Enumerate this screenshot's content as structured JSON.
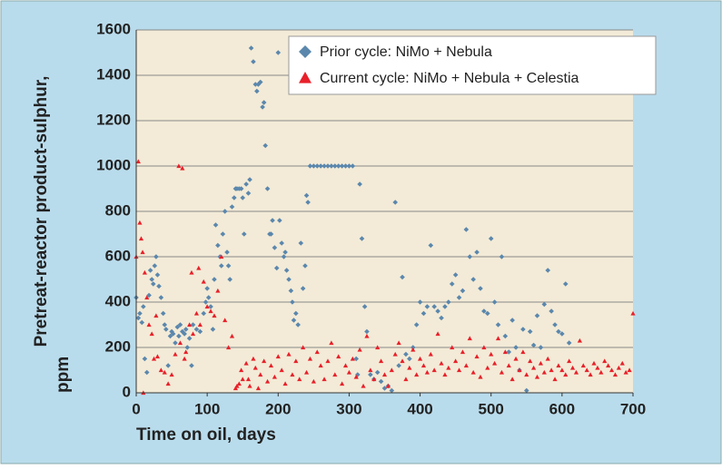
{
  "chart_data": {
    "type": "scatter",
    "x_label": "Time on oil, days",
    "y_label": [
      "Pretreat-reactor product-sulphur,",
      "ppm"
    ],
    "xlim": [
      0,
      700
    ],
    "xticks": [
      0,
      100,
      200,
      300,
      400,
      500,
      600,
      700
    ],
    "ylim": [
      0,
      1600
    ],
    "yticks": [
      0,
      200,
      400,
      600,
      800,
      1000,
      1200,
      1400,
      1600
    ],
    "grid": true,
    "legend": "top-right",
    "series": [
      {
        "name": "Prior cycle: NiMo + Nebula",
        "color": "#5b87ad",
        "marker": "diamond",
        "x": [
          0,
          3,
          5,
          8,
          10,
          12,
          15,
          18,
          20,
          22,
          24,
          26,
          28,
          30,
          32,
          35,
          38,
          40,
          42,
          45,
          48,
          50,
          52,
          55,
          58,
          60,
          62,
          65,
          68,
          70,
          72,
          75,
          78,
          80,
          85,
          90,
          95,
          98,
          100,
          102,
          105,
          108,
          110,
          112,
          115,
          118,
          120,
          122,
          125,
          128,
          130,
          132,
          135,
          138,
          140,
          142,
          145,
          148,
          150,
          152,
          155,
          158,
          160,
          162,
          165,
          168,
          170,
          172,
          175,
          178,
          180,
          182,
          185,
          188,
          190,
          192,
          195,
          198,
          200,
          202,
          205,
          208,
          210,
          212,
          215,
          218,
          220,
          222,
          225,
          228,
          232,
          235,
          238,
          240,
          242,
          245,
          250,
          255,
          260,
          265,
          270,
          275,
          280,
          285,
          290,
          295,
          300,
          305,
          310,
          312,
          315,
          318,
          322,
          325,
          330,
          335,
          340,
          345,
          350,
          355,
          360,
          365,
          370,
          375,
          380,
          385,
          390,
          395,
          400,
          405,
          410,
          415,
          420,
          425,
          430,
          435,
          440,
          445,
          450,
          455,
          460,
          465,
          470,
          475,
          480,
          485,
          490,
          495,
          500,
          505,
          510,
          515,
          520,
          525,
          530,
          535,
          540,
          545,
          550,
          555,
          560,
          565,
          570,
          575,
          580,
          585,
          590,
          595,
          600,
          605,
          610
        ],
        "values": [
          420,
          330,
          350,
          310,
          380,
          150,
          90,
          430,
          540,
          500,
          480,
          560,
          600,
          520,
          470,
          420,
          350,
          300,
          280,
          120,
          250,
          270,
          260,
          220,
          290,
          250,
          300,
          270,
          260,
          280,
          200,
          240,
          120,
          300,
          280,
          270,
          350,
          400,
          460,
          420,
          380,
          280,
          500,
          740,
          650,
          600,
          560,
          700,
          800,
          620,
          560,
          500,
          820,
          860,
          900,
          900,
          900,
          900,
          860,
          700,
          920,
          880,
          940,
          1520,
          1460,
          1360,
          1330,
          1360,
          1370,
          1260,
          1280,
          1090,
          900,
          700,
          700,
          760,
          640,
          550,
          1500,
          760,
          660,
          600,
          620,
          540,
          500,
          450,
          400,
          320,
          350,
          300,
          660,
          460,
          560,
          870,
          840,
          1000,
          1000,
          1000,
          1000,
          1000,
          1000,
          1000,
          1000,
          1000,
          1000,
          1000,
          1000,
          1000,
          150,
          80,
          920,
          680,
          380,
          270,
          80,
          60,
          90,
          50,
          20,
          30,
          10,
          840,
          120,
          510,
          170,
          150,
          200,
          300,
          400,
          350,
          380,
          650,
          380,
          360,
          330,
          380,
          400,
          480,
          520,
          420,
          450,
          720,
          600,
          500,
          620,
          460,
          360,
          350,
          680,
          400,
          300,
          600,
          250,
          180,
          320,
          200,
          100,
          280,
          10,
          270,
          210,
          340,
          200,
          390,
          540,
          360,
          300,
          270,
          260,
          480,
          220
        ]
      },
      {
        "name": "Current cycle: NiMo + Nebula + Celestia",
        "color": "#e8202a",
        "marker": "triangle",
        "x": [
          0,
          3,
          5,
          7,
          9,
          10,
          12,
          15,
          18,
          22,
          25,
          28,
          30,
          35,
          40,
          45,
          50,
          55,
          60,
          62,
          65,
          68,
          70,
          75,
          78,
          80,
          85,
          88,
          90,
          95,
          100,
          105,
          110,
          115,
          120,
          125,
          130,
          135,
          140,
          142,
          145,
          148,
          150,
          155,
          158,
          160,
          165,
          168,
          172,
          175,
          180,
          185,
          190,
          195,
          200,
          205,
          210,
          215,
          220,
          225,
          230,
          235,
          240,
          245,
          250,
          255,
          260,
          265,
          270,
          275,
          280,
          285,
          290,
          295,
          300,
          305,
          310,
          315,
          320,
          325,
          330,
          335,
          340,
          345,
          350,
          355,
          360,
          365,
          370,
          375,
          380,
          385,
          390,
          395,
          400,
          405,
          410,
          415,
          420,
          425,
          430,
          435,
          440,
          445,
          450,
          455,
          460,
          465,
          470,
          475,
          480,
          485,
          490,
          495,
          500,
          505,
          510,
          515,
          520,
          525,
          530,
          535,
          540,
          545,
          550,
          555,
          560,
          565,
          570,
          575,
          580,
          585,
          590,
          595,
          600,
          605,
          610,
          615,
          620,
          625,
          630,
          635,
          640,
          645,
          650,
          655,
          660,
          665,
          670,
          675,
          680,
          685,
          690,
          695,
          700
        ],
        "values": [
          600,
          1020,
          750,
          680,
          620,
          0,
          530,
          420,
          300,
          260,
          150,
          340,
          160,
          100,
          90,
          40,
          80,
          170,
          1000,
          220,
          990,
          150,
          180,
          300,
          530,
          260,
          350,
          550,
          300,
          490,
          380,
          360,
          340,
          450,
          600,
          320,
          200,
          250,
          20,
          30,
          40,
          100,
          60,
          130,
          60,
          30,
          150,
          110,
          20,
          80,
          140,
          50,
          120,
          70,
          160,
          100,
          40,
          170,
          80,
          140,
          60,
          200,
          90,
          150,
          50,
          180,
          120,
          60,
          140,
          220,
          80,
          160,
          40,
          120,
          90,
          150,
          70,
          190,
          30,
          250,
          100,
          60,
          200,
          140,
          80,
          30,
          100,
          170,
          220,
          140,
          60,
          110,
          190,
          80,
          150,
          120,
          90,
          170,
          100,
          260,
          130,
          80,
          110,
          200,
          140,
          100,
          180,
          120,
          240,
          90,
          160,
          70,
          200,
          110,
          170,
          130,
          240,
          90,
          180,
          120,
          60,
          150,
          100,
          180,
          80,
          140,
          110,
          70,
          130,
          90,
          150,
          100,
          60,
          120,
          100,
          80,
          140,
          110,
          90,
          230,
          120,
          100,
          80,
          130,
          110,
          90,
          140,
          120,
          100,
          80,
          110,
          130,
          90,
          100,
          350
        ]
      }
    ]
  }
}
